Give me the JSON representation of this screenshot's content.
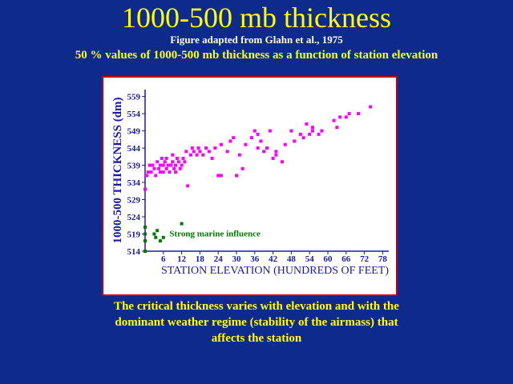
{
  "slide": {
    "title": "1000-500 mb thickness",
    "credit": "Figure adapted from Glahn et al., 1975",
    "subtitle": "50 % values of 1000-500 mb thickness as a function of station elevation",
    "caption_lines": [
      "The critical thickness varies with elevation and with the",
      "dominant weather regime (stability of the airmass) that",
      "affects the station"
    ],
    "colors": {
      "background": "#0d2a8c",
      "title": "#ffff00",
      "frame_border": "#cc0000",
      "axis_text": "#1a1aa6",
      "points": "#ff00ff",
      "marine_points": "#007a00"
    }
  },
  "chart_data": {
    "type": "scatter",
    "title": "",
    "xlabel": "STATION ELEVATION (HUNDREDS OF FEET)",
    "ylabel": "1000-500 THICKNESS (dm)",
    "xlim": [
      0,
      80
    ],
    "ylim": [
      514,
      561
    ],
    "x_ticks": [
      6,
      12,
      18,
      24,
      30,
      36,
      42,
      48,
      54,
      60,
      66,
      72,
      78
    ],
    "y_ticks": [
      514,
      519,
      524,
      529,
      534,
      539,
      544,
      549,
      554,
      559
    ],
    "grid": false,
    "annotation": "Strong marine influence",
    "series": [
      {
        "name": "",
        "color": "#ff00ff",
        "points": [
          [
            0,
            532
          ],
          [
            0.5,
            536
          ],
          [
            1,
            537
          ],
          [
            1.5,
            539
          ],
          [
            2,
            537
          ],
          [
            2.5,
            539
          ],
          [
            3,
            538
          ],
          [
            3.5,
            536
          ],
          [
            4,
            540
          ],
          [
            4.5,
            538
          ],
          [
            5,
            539
          ],
          [
            5.5,
            541
          ],
          [
            5,
            537
          ],
          [
            6,
            539
          ],
          [
            6.5,
            540
          ],
          [
            6,
            537
          ],
          [
            7,
            538
          ],
          [
            7.5,
            539
          ],
          [
            7,
            541
          ],
          [
            8,
            537
          ],
          [
            8.5,
            539
          ],
          [
            9,
            540
          ],
          [
            9,
            542
          ],
          [
            9.5,
            538
          ],
          [
            10,
            539
          ],
          [
            10.5,
            541
          ],
          [
            10,
            537
          ],
          [
            11,
            540
          ],
          [
            11.5,
            538
          ],
          [
            12,
            539
          ],
          [
            12.5,
            541
          ],
          [
            13,
            540
          ],
          [
            13.5,
            543
          ],
          [
            14,
            533
          ],
          [
            15,
            542
          ],
          [
            15.5,
            544
          ],
          [
            16,
            543
          ],
          [
            17,
            542
          ],
          [
            17.5,
            544
          ],
          [
            18,
            543
          ],
          [
            19,
            542
          ],
          [
            20,
            544
          ],
          [
            21,
            543
          ],
          [
            22,
            541
          ],
          [
            23,
            544
          ],
          [
            24,
            536
          ],
          [
            25,
            536
          ],
          [
            25,
            545
          ],
          [
            27,
            543
          ],
          [
            28,
            546
          ],
          [
            29,
            547
          ],
          [
            30,
            536
          ],
          [
            31,
            542
          ],
          [
            32,
            538
          ],
          [
            33,
            545
          ],
          [
            35,
            547
          ],
          [
            36,
            549
          ],
          [
            37,
            548
          ],
          [
            37,
            544
          ],
          [
            38,
            546
          ],
          [
            39,
            543
          ],
          [
            40,
            544
          ],
          [
            41,
            549
          ],
          [
            42,
            541
          ],
          [
            43,
            543
          ],
          [
            43,
            542
          ],
          [
            45,
            540
          ],
          [
            46,
            545
          ],
          [
            48,
            549
          ],
          [
            49,
            546
          ],
          [
            51,
            548
          ],
          [
            52,
            547
          ],
          [
            53,
            551
          ],
          [
            54,
            548
          ],
          [
            55,
            550
          ],
          [
            55,
            549
          ],
          [
            57,
            548
          ],
          [
            58,
            549
          ],
          [
            62,
            552
          ],
          [
            63,
            550
          ],
          [
            64,
            553
          ],
          [
            66,
            553
          ],
          [
            67,
            554
          ],
          [
            70,
            554
          ],
          [
            74,
            556
          ]
        ]
      },
      {
        "name": "Strong marine influence",
        "color": "#007a00",
        "points": [
          [
            0,
            514
          ],
          [
            0,
            517
          ],
          [
            0,
            519
          ],
          [
            0,
            521
          ],
          [
            3,
            519
          ],
          [
            3.5,
            518
          ],
          [
            4,
            520
          ],
          [
            5,
            517
          ],
          [
            6,
            518
          ],
          [
            12,
            522
          ]
        ]
      }
    ]
  }
}
